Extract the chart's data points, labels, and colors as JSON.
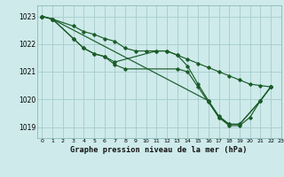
{
  "title": "Graphe pression niveau de la mer (hPa)",
  "background_color": "#ceeaea",
  "grid_color": "#aacfcf",
  "line_color": "#1a5c28",
  "xlim": [
    -0.5,
    23
  ],
  "ylim": [
    1018.6,
    1023.4
  ],
  "yticks": [
    1019,
    1020,
    1021,
    1022,
    1023
  ],
  "xticks": [
    0,
    1,
    2,
    3,
    4,
    5,
    6,
    7,
    8,
    9,
    10,
    11,
    12,
    13,
    14,
    15,
    16,
    17,
    18,
    19,
    20,
    21,
    22,
    23
  ],
  "series": {
    "line1_x": [
      0,
      1,
      3,
      4,
      5,
      6,
      7,
      8,
      9,
      10,
      11,
      12,
      13,
      14,
      15,
      16,
      17,
      18,
      19,
      20,
      21,
      22
    ],
    "line1_y": [
      1023.0,
      1022.9,
      1022.65,
      1022.45,
      1022.35,
      1022.2,
      1022.1,
      1021.85,
      1021.75,
      1021.75,
      1021.75,
      1021.75,
      1021.6,
      1021.45,
      1021.3,
      1021.15,
      1021.0,
      1020.85,
      1020.7,
      1020.55,
      1020.5,
      1020.45
    ],
    "line2_x": [
      0,
      1,
      3,
      4,
      5,
      6,
      7,
      11,
      12,
      13,
      14,
      15,
      16,
      17,
      18,
      19,
      21,
      22
    ],
    "line2_y": [
      1023.0,
      1022.9,
      1022.2,
      1021.85,
      1021.65,
      1021.55,
      1021.35,
      1021.75,
      1021.75,
      1021.6,
      1021.2,
      1020.55,
      1019.95,
      1019.4,
      1019.1,
      1019.1,
      1019.95,
      1020.45
    ],
    "line3_x": [
      0,
      1,
      3,
      4,
      5,
      6,
      7,
      8,
      13,
      14,
      15,
      16,
      17,
      18,
      19,
      21,
      22
    ],
    "line3_y": [
      1023.0,
      1022.9,
      1022.2,
      1021.85,
      1021.65,
      1021.55,
      1021.25,
      1021.1,
      1021.1,
      1021.0,
      1020.45,
      1019.9,
      1019.35,
      1019.1,
      1019.1,
      1019.95,
      1020.45
    ],
    "line4_x": [
      0,
      1,
      16,
      17,
      18,
      19,
      20,
      21,
      22
    ],
    "line4_y": [
      1023.0,
      1022.9,
      1019.95,
      1019.35,
      1019.05,
      1019.05,
      1019.35,
      1019.95,
      1020.45
    ]
  }
}
